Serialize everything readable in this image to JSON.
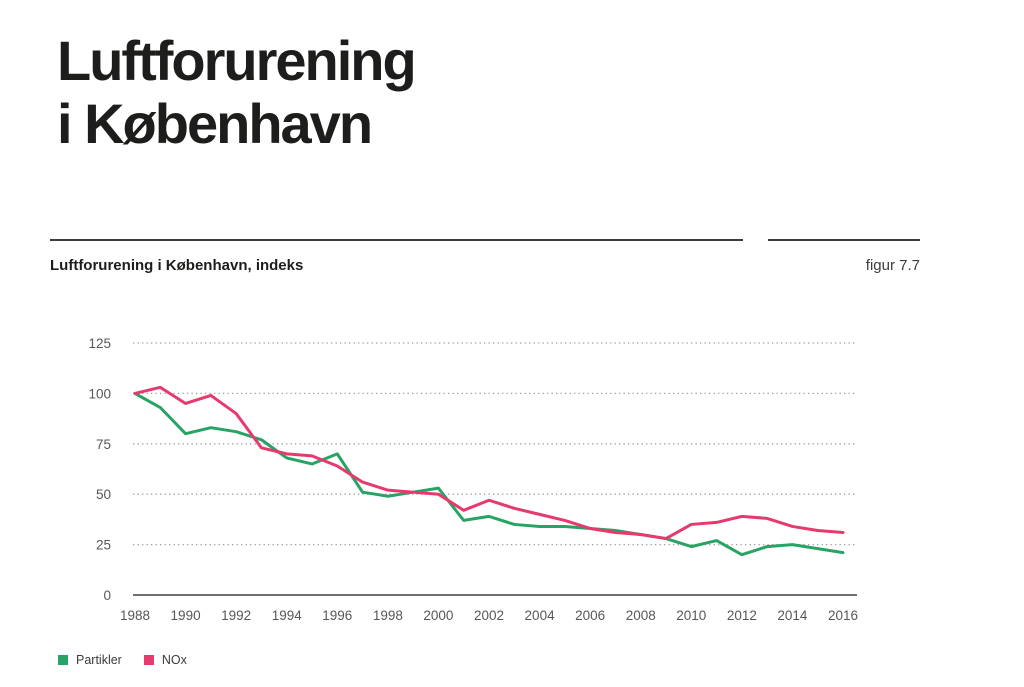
{
  "page": {
    "title_line1": "Luftforurening",
    "title_line2": "i København",
    "subtitle": "Luftforurening i København, indeks",
    "figure_label": "figur 7.7"
  },
  "legend": [
    {
      "label": "Partikler",
      "color": "#27a463"
    },
    {
      "label": "NOx",
      "color": "#e63a6e"
    }
  ],
  "chart_data": {
    "type": "line",
    "title": "Luftforurening i København, indeks",
    "xlabel": "",
    "ylabel": "",
    "ylim": [
      0,
      125
    ],
    "yticks": [
      0,
      25,
      50,
      75,
      100,
      125
    ],
    "xticks": [
      1988,
      1990,
      1992,
      1994,
      1996,
      1998,
      2000,
      2002,
      2004,
      2006,
      2008,
      2010,
      2012,
      2014,
      2016
    ],
    "grid": "horizontal-dotted",
    "legend_position": "bottom-left",
    "x": [
      1988,
      1989,
      1990,
      1991,
      1992,
      1993,
      1994,
      1995,
      1996,
      1997,
      1998,
      1999,
      2000,
      2001,
      2002,
      2003,
      2004,
      2005,
      2006,
      2007,
      2008,
      2009,
      2010,
      2011,
      2012,
      2013,
      2014,
      2015,
      2016
    ],
    "series": [
      {
        "name": "Partikler",
        "color": "#27a463",
        "values": [
          100,
          93,
          80,
          83,
          81,
          77,
          68,
          65,
          70,
          51,
          49,
          51,
          53,
          37,
          39,
          35,
          34,
          34,
          33,
          32,
          30,
          28,
          24,
          27,
          20,
          24,
          25,
          23,
          21
        ]
      },
      {
        "name": "NOx",
        "color": "#e63a6e",
        "values": [
          100,
          103,
          95,
          99,
          90,
          73,
          70,
          69,
          64,
          56,
          52,
          51,
          50,
          42,
          47,
          43,
          40,
          37,
          33,
          31,
          30,
          28,
          35,
          36,
          39,
          38,
          34,
          32,
          31
        ]
      }
    ]
  }
}
